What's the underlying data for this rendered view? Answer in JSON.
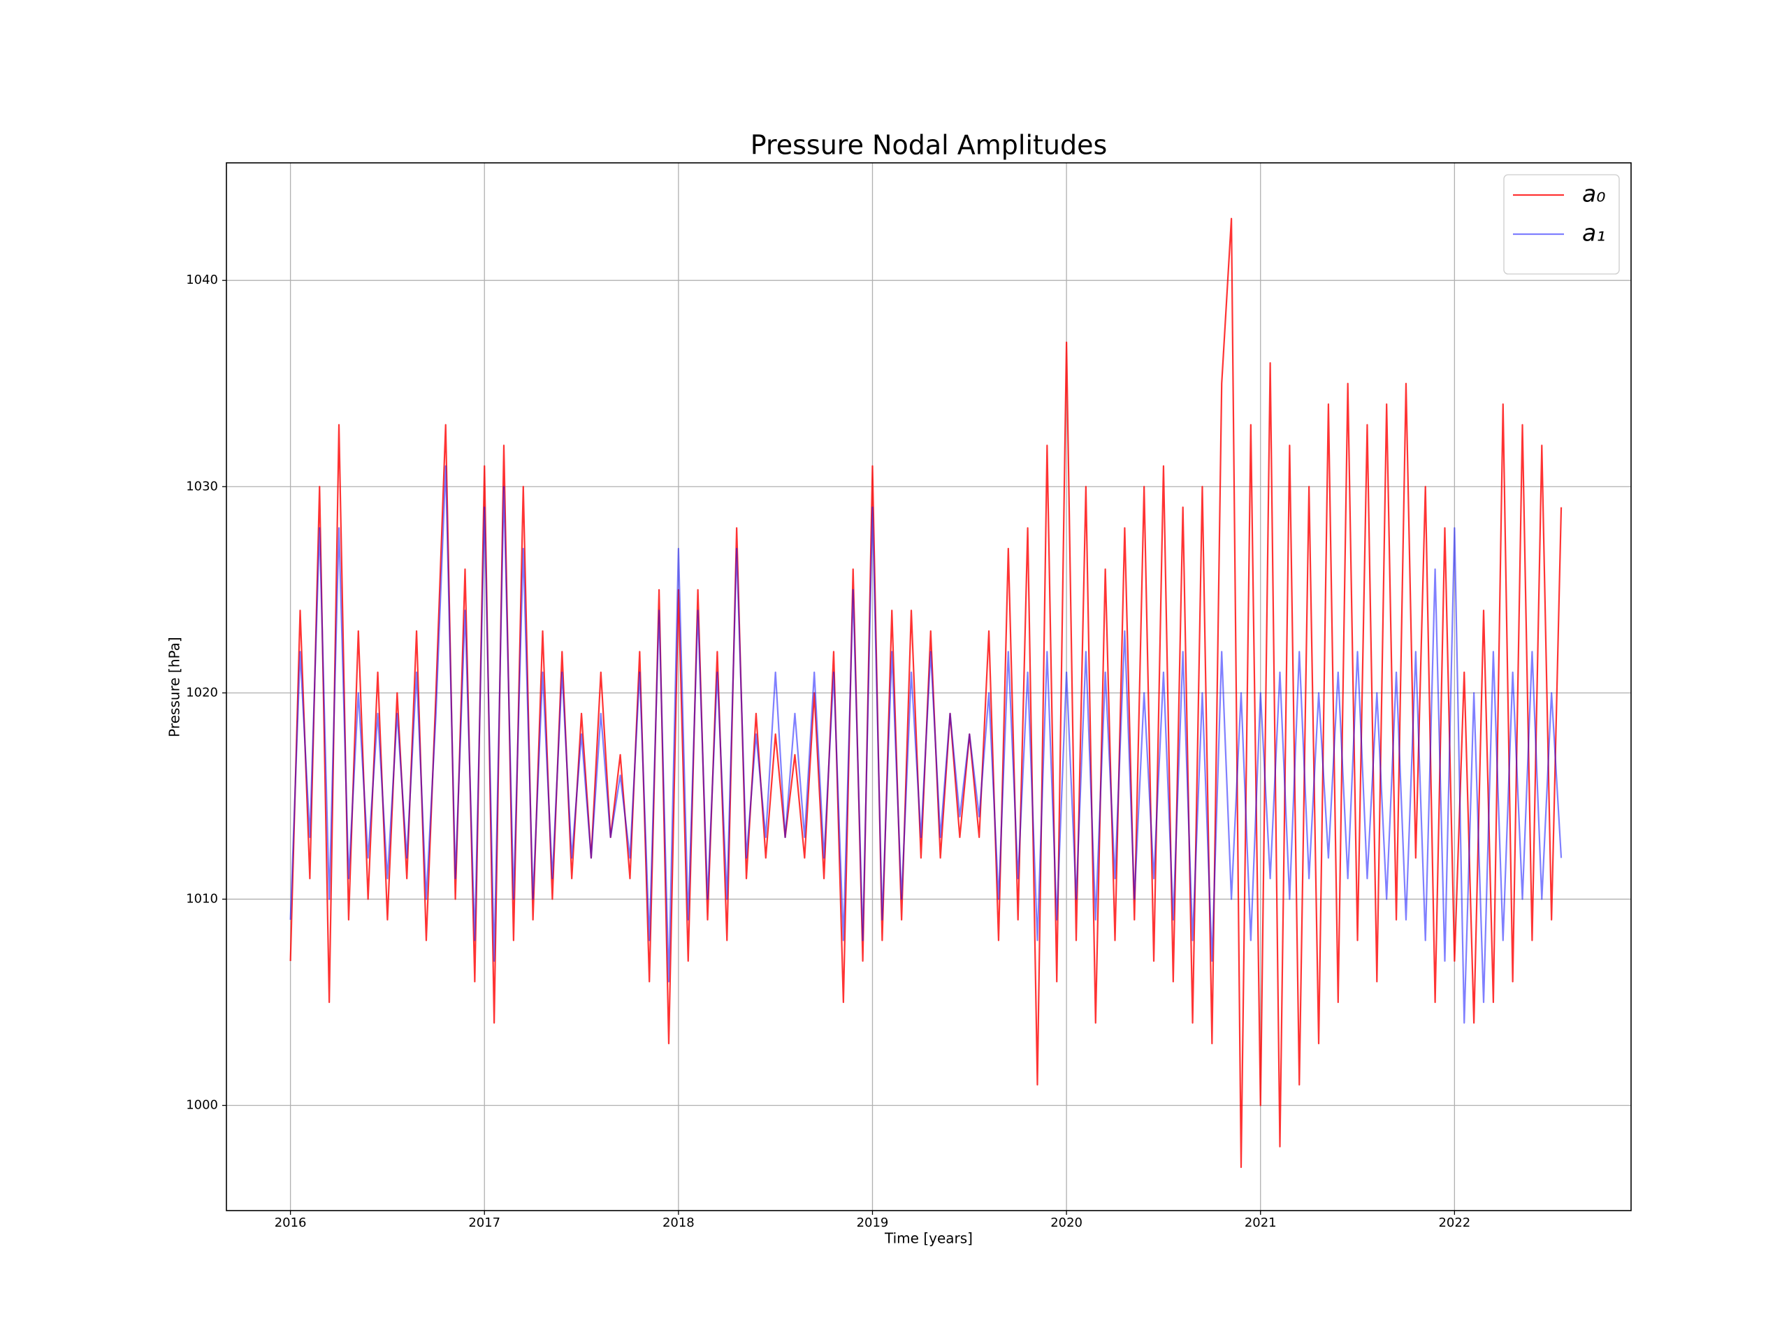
{
  "chart_data": {
    "type": "line",
    "title": "Pressure Nodal Amplitudes",
    "xlabel": "Time [years]",
    "ylabel": "Pressure [hPa]",
    "xlim": [
      2015.67,
      2022.91
    ],
    "ylim": [
      994.9,
      1045.7
    ],
    "xticks": [
      2016,
      2017,
      2018,
      2019,
      2020,
      2021,
      2022
    ],
    "yticks": [
      1000,
      1010,
      1020,
      1030,
      1040
    ],
    "grid": true,
    "legend": "upper right",
    "x": [
      2016,
      2016.05,
      2016.1,
      2016.15,
      2016.2,
      2016.25,
      2016.3,
      2016.35,
      2016.4,
      2016.45,
      2016.5,
      2016.55,
      2016.6,
      2016.65,
      2016.7,
      2016.75,
      2016.8,
      2016.85,
      2016.9,
      2016.95,
      2017,
      2017.05,
      2017.1,
      2017.15,
      2017.2,
      2017.25,
      2017.3,
      2017.35,
      2017.4,
      2017.45,
      2017.5,
      2017.55,
      2017.6,
      2017.65,
      2017.7,
      2017.75,
      2017.8,
      2017.85,
      2017.9,
      2017.95,
      2018,
      2018.05,
      2018.1,
      2018.15,
      2018.2,
      2018.25,
      2018.3,
      2018.35,
      2018.4,
      2018.45,
      2018.5,
      2018.55,
      2018.6,
      2018.65,
      2018.7,
      2018.75,
      2018.8,
      2018.85,
      2018.9,
      2018.95,
      2019,
      2019.05,
      2019.1,
      2019.15,
      2019.2,
      2019.25,
      2019.3,
      2019.35,
      2019.4,
      2019.45,
      2019.5,
      2019.55,
      2019.6,
      2019.65,
      2019.7,
      2019.75,
      2019.8,
      2019.85,
      2019.9,
      2019.95,
      2020,
      2020.05,
      2020.1,
      2020.15,
      2020.2,
      2020.25,
      2020.3,
      2020.35,
      2020.4,
      2020.45,
      2020.5,
      2020.55,
      2020.6,
      2020.65,
      2020.7,
      2020.75,
      2020.8,
      2020.85,
      2020.9,
      2020.95,
      2021,
      2021.05,
      2021.1,
      2021.15,
      2021.2,
      2021.25,
      2021.3,
      2021.35,
      2021.4,
      2021.45,
      2021.5,
      2021.55,
      2021.6,
      2021.65,
      2021.7,
      2021.75,
      2021.8,
      2021.85,
      2021.9,
      2021.95,
      2022,
      2022.05,
      2022.1,
      2022.15,
      2022.2,
      2022.25,
      2022.3,
      2022.35,
      2022.4,
      2022.45,
      2022.5,
      2022.55
    ],
    "series": [
      {
        "name": "a₀",
        "color": "#ff0000",
        "alpha": 0.8,
        "values": [
          1007,
          1024,
          1011,
          1030,
          1005,
          1033,
          1009,
          1023,
          1010,
          1021,
          1009,
          1020,
          1011,
          1023,
          1008,
          1020,
          1033,
          1010,
          1026,
          1006,
          1031,
          1004,
          1032,
          1008,
          1030,
          1009,
          1023,
          1010,
          1022,
          1011,
          1019,
          1012,
          1021,
          1013,
          1017,
          1011,
          1022,
          1006,
          1025,
          1003,
          1025,
          1007,
          1025,
          1009,
          1022,
          1008,
          1028,
          1011,
          1019,
          1012,
          1018,
          1013,
          1017,
          1012,
          1020,
          1011,
          1022,
          1005,
          1026,
          1007,
          1031,
          1008,
          1024,
          1009,
          1024,
          1012,
          1023,
          1012,
          1019,
          1013,
          1018,
          1013,
          1023,
          1008,
          1027,
          1009,
          1028,
          1001,
          1032,
          1006,
          1037,
          1008,
          1030,
          1004,
          1026,
          1008,
          1028,
          1009,
          1030,
          1007,
          1031,
          1006,
          1029,
          1004,
          1030,
          1003,
          1035,
          1043,
          997,
          1033,
          1000,
          1036,
          998,
          1032,
          1001,
          1030,
          1003,
          1034,
          1005,
          1035,
          1008,
          1033,
          1006,
          1034,
          1009,
          1035,
          1012,
          1030,
          1005,
          1028,
          1007,
          1021,
          1004,
          1024,
          1005,
          1034,
          1006,
          1033,
          1008,
          1032,
          1009,
          1029
        ]
      },
      {
        "name": "a₁",
        "color": "#0000ff",
        "alpha": 0.5,
        "values": [
          1009,
          1022,
          1013,
          1028,
          1010,
          1028,
          1011,
          1020,
          1012,
          1019,
          1011,
          1019,
          1012,
          1021,
          1010,
          1019,
          1031,
          1011,
          1024,
          1008,
          1029,
          1007,
          1030,
          1010,
          1027,
          1010,
          1021,
          1011,
          1021,
          1012,
          1018,
          1012,
          1019,
          1013,
          1016,
          1012,
          1021,
          1008,
          1024,
          1006,
          1027,
          1009,
          1024,
          1010,
          1021,
          1010,
          1027,
          1012,
          1018,
          1013,
          1021,
          1013,
          1019,
          1013,
          1021,
          1012,
          1021,
          1008,
          1025,
          1008,
          1029,
          1009,
          1022,
          1010,
          1021,
          1013,
          1022,
          1013,
          1019,
          1014,
          1018,
          1014,
          1020,
          1010,
          1022,
          1011,
          1021,
          1008,
          1022,
          1009,
          1021,
          1010,
          1022,
          1009,
          1021,
          1011,
          1023,
          1010,
          1020,
          1011,
          1021,
          1009,
          1022,
          1008,
          1020,
          1007,
          1022,
          1010,
          1020,
          1008,
          1020,
          1011,
          1021,
          1010,
          1022,
          1011,
          1020,
          1012,
          1021,
          1011,
          1022,
          1011,
          1020,
          1010,
          1021,
          1009,
          1022,
          1008,
          1026,
          1007,
          1028,
          1004,
          1020,
          1005,
          1022,
          1008,
          1021,
          1010,
          1022,
          1010,
          1020,
          1012
        ]
      }
    ]
  }
}
